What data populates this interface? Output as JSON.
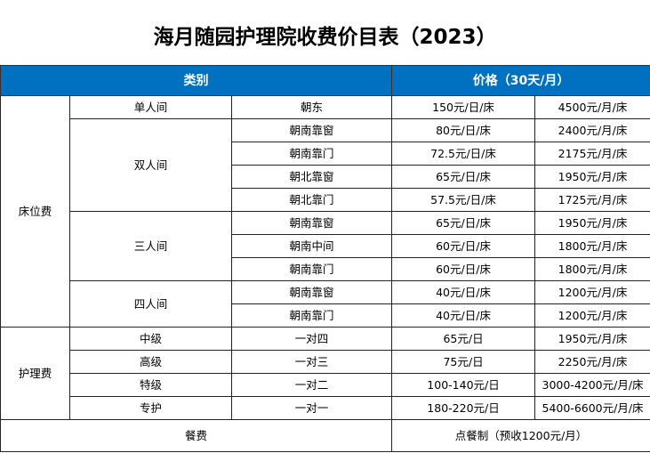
{
  "title": "海月随园护理院收费价目表（2023）",
  "header": {
    "category": "类别",
    "price": "价格（30天/月）"
  },
  "bed_fee": {
    "label": "床位费",
    "groups": [
      {
        "room": "单人间",
        "options": [
          {
            "orientation": "朝东",
            "daily": "150元/日/床",
            "monthly": "4500元/月/床"
          }
        ]
      },
      {
        "room": "双人间",
        "options": [
          {
            "orientation": "朝南靠窗",
            "daily": "80元/日/床",
            "monthly": "2400元/月/床"
          },
          {
            "orientation": "朝南靠门",
            "daily": "72.5元/日/床",
            "monthly": "2175元/月/床"
          },
          {
            "orientation": "朝北靠窗",
            "daily": "65元/日/床",
            "monthly": "1950元/月/床"
          },
          {
            "orientation": "朝北靠门",
            "daily": "57.5元/日/床",
            "monthly": "1725元/月/床"
          }
        ]
      },
      {
        "room": "三人间",
        "options": [
          {
            "orientation": "朝南靠窗",
            "daily": "65元/日/床",
            "monthly": "1950元/月/床"
          },
          {
            "orientation": "朝南中间",
            "daily": "60元/日/床",
            "monthly": "1800元/月/床"
          },
          {
            "orientation": "朝南靠门",
            "daily": "60元/日/床",
            "monthly": "1800元/月/床"
          }
        ]
      },
      {
        "room": "四人间",
        "options": [
          {
            "orientation": "朝南靠窗",
            "daily": "40元/日/床",
            "monthly": "1200元/月/床"
          },
          {
            "orientation": "朝南靠门",
            "daily": "40元/日/床",
            "monthly": "1200元/月/床"
          }
        ]
      }
    ]
  },
  "nursing_fee": {
    "label": "护理费",
    "levels": [
      {
        "level": "中级",
        "ratio": "一对四",
        "daily": "65元/日",
        "monthly": "1950元/月/床"
      },
      {
        "level": "高级",
        "ratio": "一对三",
        "daily": "75元/日",
        "monthly": "2250元/月/床"
      },
      {
        "level": "特级",
        "ratio": "一对二",
        "daily": "100-140元/日",
        "monthly": "3000-4200元/月/床"
      },
      {
        "level": "专护",
        "ratio": "一对一",
        "daily": "180-220元/日",
        "monthly": "5400-6600元/月/床"
      }
    ]
  },
  "meal_fee": {
    "label": "餐费",
    "price": "点餐制（预收1200元/月）"
  }
}
